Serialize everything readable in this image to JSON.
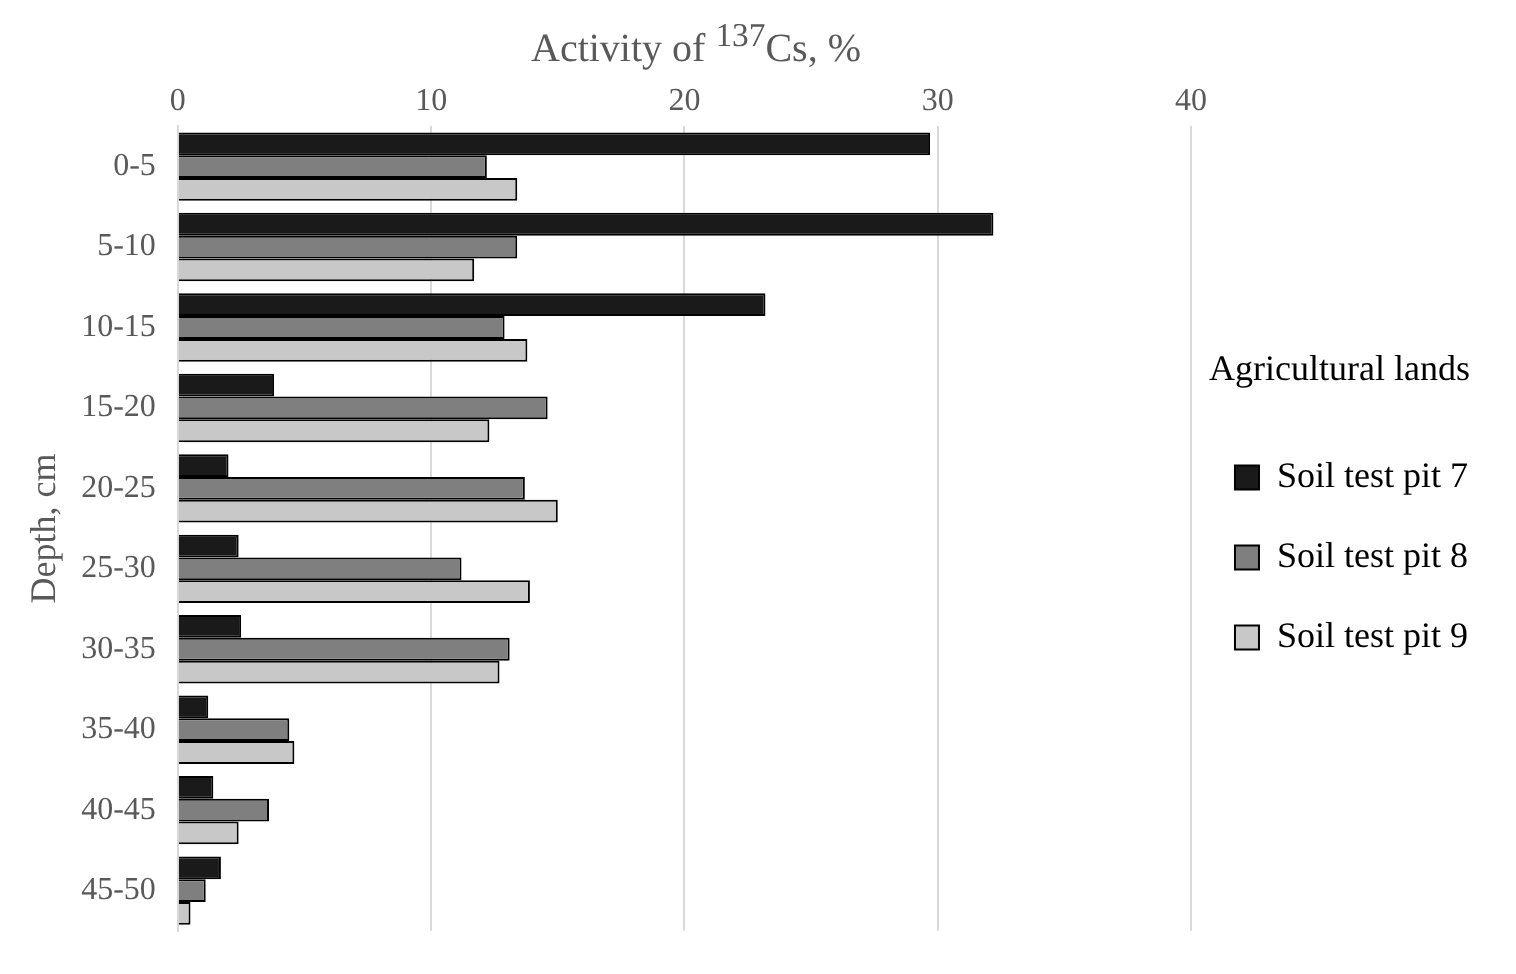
{
  "chart_data": {
    "type": "bar",
    "orientation": "horizontal",
    "xlabel": "Activity of $^{137}$Cs, %",
    "ylabel": "Depth, cm",
    "legend_title": "Agricultural lands",
    "categories": [
      "0-5",
      "5-10",
      "10-15",
      "15-20",
      "20-25",
      "25-30",
      "30-35",
      "35-40",
      "40-45",
      "45-50"
    ],
    "series": [
      {
        "name": "Soil test pit 7",
        "color": "#1a1a1a",
        "values": [
          29.7,
          32.2,
          23.2,
          3.8,
          2.0,
          2.4,
          2.5,
          1.2,
          1.4,
          1.7
        ]
      },
      {
        "name": "Soil test pit 8",
        "color": "#7f7f7f",
        "values": [
          12.2,
          13.4,
          12.9,
          14.6,
          13.7,
          11.2,
          13.1,
          4.4,
          3.6,
          1.1
        ]
      },
      {
        "name": "Soil test pit 9",
        "color": "#c8c8c8",
        "values": [
          13.4,
          11.7,
          13.8,
          12.3,
          15.0,
          13.9,
          12.7,
          4.6,
          2.4,
          0.5
        ]
      }
    ],
    "xlim": [
      0,
      40
    ],
    "xticks": [
      0,
      10,
      20,
      30,
      40
    ],
    "grid": "x",
    "legend": "right"
  }
}
